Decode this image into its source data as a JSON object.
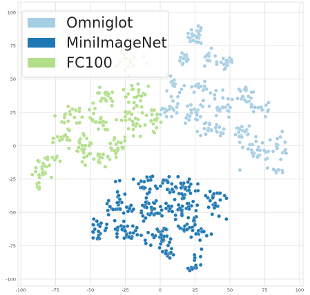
{
  "chart_data": {
    "type": "scatter",
    "title": "",
    "xlabel": "",
    "ylabel": "",
    "xlim": [
      -100,
      100
    ],
    "ylim": [
      -100,
      100
    ],
    "xticks": [
      -100,
      -75,
      -50,
      -25,
      0,
      25,
      50,
      75,
      100
    ],
    "yticks": [
      -100,
      -75,
      -50,
      -25,
      0,
      25,
      50,
      75,
      100
    ],
    "grid": true,
    "legend_position": "top-left",
    "series": [
      {
        "name": "Omniglot",
        "color": "#a6cee3",
        "clusters": [
          {
            "center": [
              26,
              82
            ],
            "spread": [
              5,
              10
            ],
            "count": 26
          },
          {
            "center": [
              16,
              64
            ],
            "spread": [
              5,
              6
            ],
            "count": 16
          },
          {
            "center": [
              35,
              65
            ],
            "spread": [
              5,
              6
            ],
            "count": 14
          },
          {
            "center": [
              47,
              62
            ],
            "spread": [
              6,
              5
            ],
            "count": 14
          },
          {
            "center": [
              10,
              45
            ],
            "spread": [
              6,
              8
            ],
            "count": 18
          },
          {
            "center": [
              30,
              42
            ],
            "spread": [
              7,
              7
            ],
            "count": 20
          },
          {
            "center": [
              8,
              26
            ],
            "spread": [
              6,
              7
            ],
            "count": 18
          },
          {
            "center": [
              26,
              25
            ],
            "spread": [
              8,
              7
            ],
            "count": 22
          },
          {
            "center": [
              45,
              30
            ],
            "spread": [
              7,
              8
            ],
            "count": 20
          },
          {
            "center": [
              62,
              38
            ],
            "spread": [
              7,
              5
            ],
            "count": 16
          },
          {
            "center": [
              72,
              28
            ],
            "spread": [
              7,
              6
            ],
            "count": 14
          },
          {
            "center": [
              36,
              12
            ],
            "spread": [
              10,
              6
            ],
            "count": 22
          },
          {
            "center": [
              60,
              10
            ],
            "spread": [
              8,
              5
            ],
            "count": 16
          },
          {
            "center": [
              68,
              -5
            ],
            "spread": [
              10,
              8
            ],
            "count": 26
          },
          {
            "center": [
              85,
              0
            ],
            "spread": [
              5,
              10
            ],
            "count": 16
          },
          {
            "center": [
              84,
              -18
            ],
            "spread": [
              6,
              3
            ],
            "count": 8
          }
        ]
      },
      {
        "name": "MiniImageNet",
        "color": "#1f78b4",
        "clusters": [
          {
            "center": [
              -8,
              -30
            ],
            "spread": [
              12,
              6
            ],
            "count": 30
          },
          {
            "center": [
              15,
              -30
            ],
            "spread": [
              12,
              6
            ],
            "count": 30
          },
          {
            "center": [
              -30,
              -45
            ],
            "spread": [
              10,
              10
            ],
            "count": 30
          },
          {
            "center": [
              -5,
              -48
            ],
            "spread": [
              10,
              10
            ],
            "count": 35
          },
          {
            "center": [
              18,
              -48
            ],
            "spread": [
              10,
              10
            ],
            "count": 35
          },
          {
            "center": [
              40,
              -42
            ],
            "spread": [
              8,
              10
            ],
            "count": 25
          },
          {
            "center": [
              -45,
              -62
            ],
            "spread": [
              6,
              8
            ],
            "count": 20
          },
          {
            "center": [
              -25,
              -65
            ],
            "spread": [
              10,
              8
            ],
            "count": 30
          },
          {
            "center": [
              0,
              -68
            ],
            "spread": [
              10,
              8
            ],
            "count": 30
          },
          {
            "center": [
              25,
              -62
            ],
            "spread": [
              10,
              8
            ],
            "count": 28
          },
          {
            "center": [
              5,
              -80
            ],
            "spread": [
              6,
              4
            ],
            "count": 12
          },
          {
            "center": [
              22,
              -92
            ],
            "spread": [
              4,
              3
            ],
            "count": 8
          },
          {
            "center": [
              26,
              -84
            ],
            "spread": [
              3,
              4
            ],
            "count": 6
          }
        ]
      },
      {
        "name": "FC100",
        "color": "#b2df8a",
        "clusters": [
          {
            "center": [
              -22,
              62
            ],
            "spread": [
              8,
              7
            ],
            "count": 20
          },
          {
            "center": [
              -40,
              38
            ],
            "spread": [
              8,
              8
            ],
            "count": 22
          },
          {
            "center": [
              -18,
              38
            ],
            "spread": [
              8,
              8
            ],
            "count": 22
          },
          {
            "center": [
              -65,
              22
            ],
            "spread": [
              8,
              6
            ],
            "count": 20
          },
          {
            "center": [
              -45,
              18
            ],
            "spread": [
              8,
              8
            ],
            "count": 24
          },
          {
            "center": [
              -20,
              18
            ],
            "spread": [
              8,
              8
            ],
            "count": 24
          },
          {
            "center": [
              -3,
              18
            ],
            "spread": [
              4,
              10
            ],
            "count": 14
          },
          {
            "center": [
              -70,
              5
            ],
            "spread": [
              6,
              6
            ],
            "count": 14
          },
          {
            "center": [
              -55,
              -2
            ],
            "spread": [
              8,
              8
            ],
            "count": 22
          },
          {
            "center": [
              -30,
              0
            ],
            "spread": [
              8,
              8
            ],
            "count": 22
          },
          {
            "center": [
              -45,
              -10
            ],
            "spread": [
              8,
              6
            ],
            "count": 16
          },
          {
            "center": [
              -77,
              -8
            ],
            "spread": [
              4,
              4
            ],
            "count": 8
          },
          {
            "center": [
              -83,
              -18
            ],
            "spread": [
              6,
              7
            ],
            "count": 20
          },
          {
            "center": [
              -88,
              -30
            ],
            "spread": [
              3,
              4
            ],
            "count": 6
          }
        ]
      }
    ]
  }
}
